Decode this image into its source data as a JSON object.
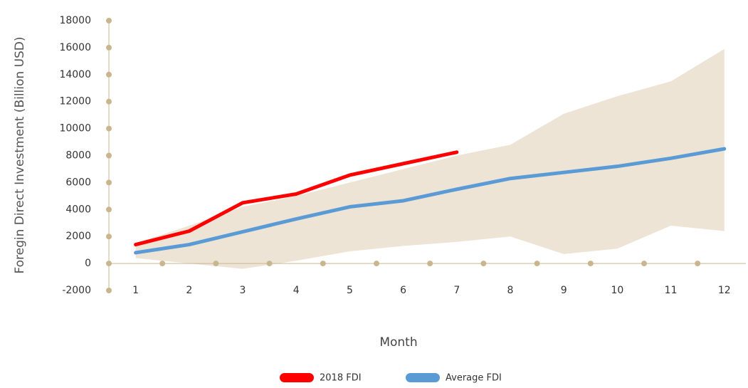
{
  "chart_data": {
    "type": "line",
    "x_label": "Month",
    "y_label": "Foregin Direct Investment (Billion USD)",
    "categories": [
      "1",
      "2",
      "3",
      "4",
      "5",
      "6",
      "7",
      "8",
      "9",
      "10",
      "11",
      "12"
    ],
    "series": [
      {
        "name": "2018 FDI",
        "color": "#ff0000",
        "values": [
          1400,
          2400,
          4500,
          5150,
          6550,
          7400,
          8250,
          null,
          null,
          null,
          null,
          null
        ]
      },
      {
        "name": "Average FDI",
        "color": "#5b9bd5",
        "values": [
          800,
          1400,
          2350,
          3300,
          4200,
          4650,
          5500,
          6300,
          6750,
          7200,
          7800,
          8500
        ]
      }
    ],
    "band": {
      "color": "#ede4d6",
      "upper": [
        1500,
        2800,
        4200,
        5000,
        6000,
        7000,
        8000,
        8800,
        11100,
        12400,
        13500,
        15900
      ],
      "lower": [
        400,
        0,
        -400,
        200,
        900,
        1300,
        1600,
        2000,
        700,
        1100,
        2800,
        2400
      ]
    },
    "axis_color": "#c9b68e",
    "ylim": [
      -2000,
      18000
    ],
    "yticks": [
      -2000,
      0,
      2000,
      4000,
      6000,
      8000,
      10000,
      12000,
      14000,
      16000,
      18000
    ]
  }
}
